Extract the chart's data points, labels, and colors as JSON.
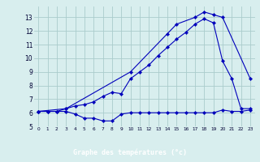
{
  "xlabel": "Graphe des températures (°c)",
  "xlim": [
    -0.5,
    23.5
  ],
  "ylim": [
    5,
    13.8
  ],
  "yticks": [
    5,
    6,
    7,
    8,
    9,
    10,
    11,
    12,
    13
  ],
  "xticks": [
    0,
    1,
    2,
    3,
    4,
    5,
    6,
    7,
    8,
    9,
    10,
    11,
    12,
    13,
    14,
    15,
    16,
    17,
    18,
    19,
    20,
    21,
    22,
    23
  ],
  "bg_color": "#d8eeee",
  "grid_color": "#aacccc",
  "line_color": "#0000bb",
  "line1_x": [
    0,
    1,
    2,
    3,
    4,
    5,
    6,
    7,
    8,
    9,
    10,
    11,
    12,
    13,
    14,
    15,
    16,
    17,
    18,
    19,
    20,
    21,
    22,
    23
  ],
  "line1_y": [
    6.1,
    6.1,
    6.1,
    6.1,
    5.9,
    5.6,
    5.6,
    5.4,
    5.4,
    5.9,
    6.0,
    6.0,
    6.0,
    6.0,
    6.0,
    6.0,
    6.0,
    6.0,
    6.0,
    6.0,
    6.2,
    6.1,
    6.1,
    6.2
  ],
  "line2_x": [
    0,
    1,
    2,
    3,
    4,
    5,
    6,
    7,
    8,
    9,
    10,
    11,
    12,
    13,
    14,
    15,
    16,
    17,
    18,
    19,
    20,
    21,
    22,
    23
  ],
  "line2_y": [
    6.1,
    6.1,
    6.1,
    6.3,
    6.5,
    6.6,
    6.8,
    7.2,
    7.5,
    7.4,
    8.5,
    9.0,
    9.5,
    10.2,
    10.8,
    11.4,
    11.9,
    12.5,
    12.9,
    12.6,
    9.8,
    8.5,
    6.3,
    6.3
  ],
  "line3_x": [
    0,
    3,
    10,
    14,
    15,
    17,
    18,
    19,
    20,
    23
  ],
  "line3_y": [
    6.1,
    6.3,
    9.0,
    11.8,
    12.5,
    13.0,
    13.4,
    13.2,
    13.0,
    8.5
  ]
}
